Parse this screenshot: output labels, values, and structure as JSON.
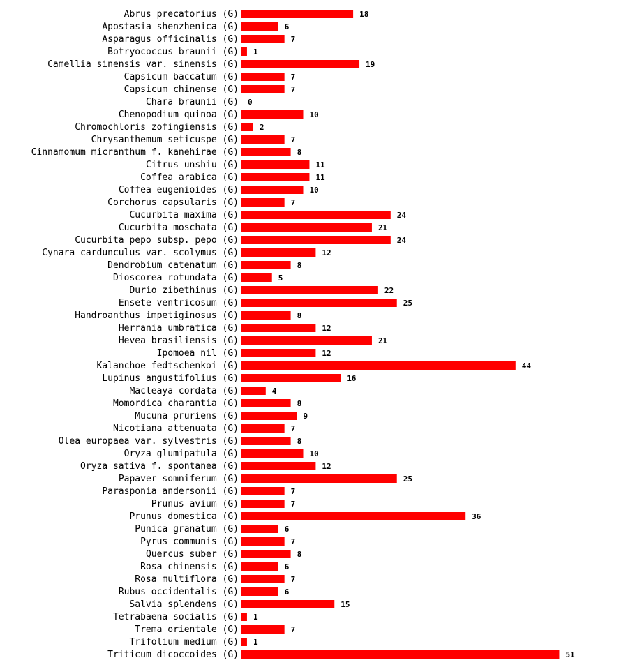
{
  "chart_data": {
    "type": "bar",
    "orientation": "horizontal",
    "bar_color": "#ff0000",
    "label_suffix": "(G)",
    "categories": [
      "Abrus precatorius",
      "Apostasia shenzhenica",
      "Asparagus officinalis",
      "Botryococcus braunii",
      "Camellia sinensis var. sinensis",
      "Capsicum baccatum",
      "Capsicum chinense",
      "Chara braunii",
      "Chenopodium quinoa",
      "Chromochloris zofingiensis",
      "Chrysanthemum seticuspe",
      "Cinnamomum micranthum f. kanehirae",
      "Citrus unshiu",
      "Coffea arabica",
      "Coffea eugenioides",
      "Corchorus capsularis",
      "Cucurbita maxima",
      "Cucurbita moschata",
      "Cucurbita pepo subsp. pepo",
      "Cynara cardunculus var. scolymus",
      "Dendrobium catenatum",
      "Dioscorea rotundata",
      "Durio zibethinus",
      "Ensete ventricosum",
      "Handroanthus impetiginosus",
      "Herrania umbratica",
      "Hevea brasiliensis",
      "Ipomoea nil",
      "Kalanchoe fedtschenkoi",
      "Lupinus angustifolius",
      "Macleaya cordata",
      "Momordica charantia",
      "Mucuna pruriens",
      "Nicotiana attenuata",
      "Olea europaea var. sylvestris",
      "Oryza glumipatula",
      "Oryza sativa f. spontanea",
      "Papaver somniferum",
      "Parasponia andersonii",
      "Prunus avium",
      "Prunus domestica",
      "Punica granatum",
      "Pyrus communis",
      "Quercus suber",
      "Rosa chinensis",
      "Rosa multiflora",
      "Rubus occidentalis",
      "Salvia splendens",
      "Tetrabaena socialis",
      "Trema orientale",
      "Trifolium medium",
      "Triticum dicoccoides"
    ],
    "values": [
      18,
      6,
      7,
      1,
      19,
      7,
      7,
      0,
      10,
      2,
      7,
      8,
      11,
      11,
      10,
      7,
      24,
      21,
      24,
      12,
      8,
      5,
      22,
      25,
      8,
      12,
      21,
      12,
      44,
      16,
      4,
      8,
      9,
      7,
      8,
      10,
      12,
      25,
      7,
      7,
      36,
      6,
      7,
      8,
      6,
      7,
      6,
      15,
      1,
      7,
      1,
      51
    ],
    "xlim": [
      0,
      51
    ]
  }
}
